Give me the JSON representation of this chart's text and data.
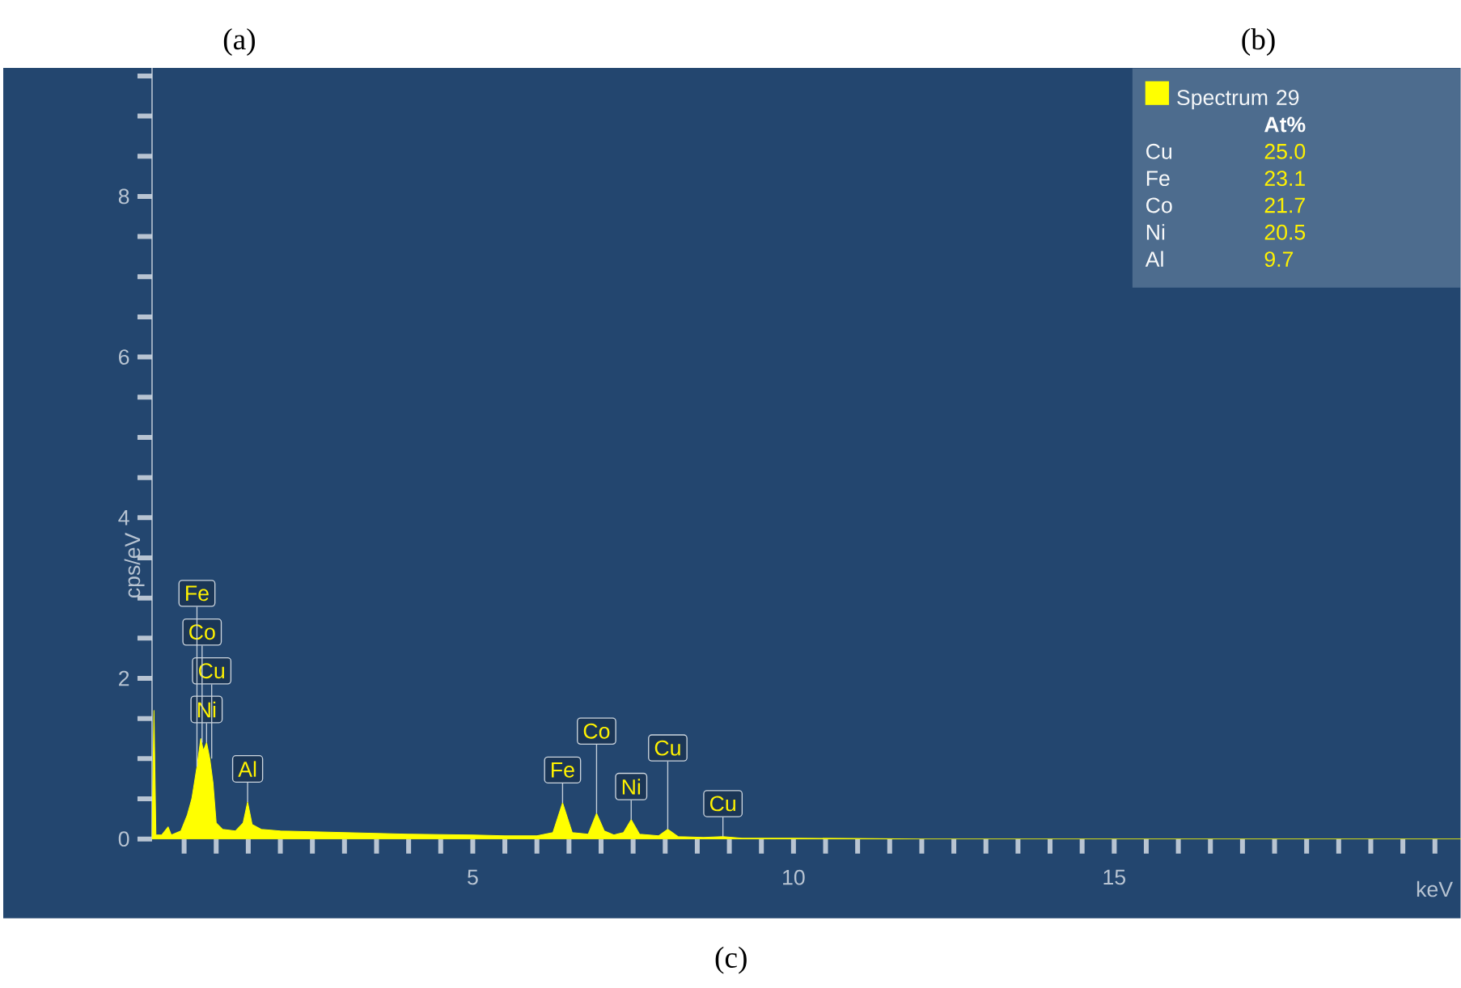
{
  "chart_data": {
    "type": "area",
    "xlabel": "keV",
    "ylabel": "cps/eV",
    "xlim": [
      0,
      20.4
    ],
    "ylim": [
      0,
      9.6
    ],
    "xticks": [
      {
        "value": 0.5,
        "label": null
      },
      {
        "value": 1,
        "label": null
      },
      {
        "value": 1.5,
        "label": null
      },
      {
        "value": 2,
        "label": null
      },
      {
        "value": 2.5,
        "label": null
      },
      {
        "value": 3,
        "label": null
      },
      {
        "value": 3.5,
        "label": null
      },
      {
        "value": 4,
        "label": null
      },
      {
        "value": 4.5,
        "label": null
      },
      5,
      {
        "value": 5.5,
        "label": null
      },
      {
        "value": 6,
        "label": null
      },
      {
        "value": 6.5,
        "label": null
      },
      {
        "value": 7,
        "label": null
      },
      {
        "value": 7.5,
        "label": null
      },
      {
        "value": 8,
        "label": null
      },
      {
        "value": 8.5,
        "label": null
      },
      {
        "value": 9,
        "label": null
      },
      {
        "value": 9.5,
        "label": null
      },
      10,
      {
        "value": 10.5,
        "label": null
      },
      {
        "value": 11,
        "label": null
      },
      {
        "value": 11.5,
        "label": null
      },
      {
        "value": 12,
        "label": null
      },
      {
        "value": 12.5,
        "label": null
      },
      {
        "value": 13,
        "label": null
      },
      {
        "value": 13.5,
        "label": null
      },
      {
        "value": 14,
        "label": null
      },
      {
        "value": 14.5,
        "label": null
      },
      15,
      {
        "value": 15.5,
        "label": null
      },
      {
        "value": 16,
        "label": null
      },
      {
        "value": 16.5,
        "label": null
      },
      {
        "value": 17,
        "label": null
      },
      {
        "value": 17.5,
        "label": null
      },
      {
        "value": 18,
        "label": null
      },
      {
        "value": 18.5,
        "label": null
      },
      {
        "value": 19,
        "label": null
      },
      {
        "value": 19.5,
        "label": null
      },
      {
        "value": 20,
        "label": null
      }
    ],
    "yticks": [
      0,
      {
        "value": 0.5,
        "label": null
      },
      {
        "value": 1,
        "label": null
      },
      {
        "value": 1.5,
        "label": null
      },
      2,
      {
        "value": 2.5,
        "label": null
      },
      {
        "value": 3,
        "label": null
      },
      {
        "value": 3.5,
        "label": null
      },
      4,
      {
        "value": 4.5,
        "label": null
      },
      {
        "value": 5,
        "label": null
      },
      {
        "value": 5.5,
        "label": null
      },
      6,
      {
        "value": 6.5,
        "label": null
      },
      {
        "value": 7,
        "label": null
      },
      {
        "value": 7.5,
        "label": null
      },
      8,
      {
        "value": 8.5,
        "label": null
      },
      {
        "value": 9,
        "label": null
      },
      {
        "value": 9.5,
        "label": null
      }
    ],
    "legend": "top right",
    "series": [
      {
        "name": "Spectrum 29",
        "color": "#ffff00",
        "x": [
          0,
          0.03,
          0.06,
          0.15,
          0.25,
          0.3,
          0.45,
          0.55,
          0.62,
          0.7,
          0.76,
          0.8,
          0.85,
          0.9,
          0.95,
          1.0,
          1.1,
          1.3,
          1.42,
          1.49,
          1.56,
          1.7,
          2.0,
          2.5,
          3.0,
          3.5,
          4.0,
          5.0,
          5.5,
          6.0,
          6.25,
          6.4,
          6.55,
          6.8,
          6.93,
          7.05,
          7.2,
          7.35,
          7.47,
          7.6,
          7.9,
          8.04,
          8.2,
          8.6,
          8.9,
          9.2,
          10,
          12,
          15,
          20.4
        ],
        "values": [
          0,
          1.6,
          0.05,
          0.05,
          0.15,
          0.05,
          0.1,
          0.3,
          0.5,
          0.9,
          1.25,
          1.1,
          1.2,
          1.0,
          0.7,
          0.2,
          0.12,
          0.1,
          0.2,
          0.46,
          0.18,
          0.12,
          0.1,
          0.09,
          0.08,
          0.07,
          0.06,
          0.05,
          0.04,
          0.04,
          0.08,
          0.45,
          0.08,
          0.06,
          0.32,
          0.1,
          0.05,
          0.08,
          0.24,
          0.06,
          0.04,
          0.12,
          0.03,
          0.02,
          0.03,
          0.01,
          0.01,
          0,
          0,
          0
        ]
      }
    ],
    "annotations": [
      "(a)",
      "(b)",
      "(c)",
      "At%",
      "Cu",
      "25.0",
      "Fe",
      "23.1",
      "Co",
      "21.7",
      "Ni",
      "20.5",
      "Al",
      "9.7",
      {
        "text": "Al",
        "x": 1.49,
        "y": 0.46
      },
      {
        "text": "Ni",
        "x": 0.85,
        "y": 1.2
      },
      {
        "text": "Cu",
        "x": 0.93,
        "y": 1.0
      },
      {
        "text": "Co",
        "x": 0.78,
        "y": 1.2
      },
      {
        "text": "Fe",
        "x": 0.7,
        "y": 0.9
      },
      {
        "text": "Fe",
        "x": 6.4,
        "y": 0.45
      },
      {
        "text": "Ni",
        "x": 7.47,
        "y": 0.24
      },
      {
        "text": "Co",
        "x": 6.93,
        "y": 0.32
      },
      {
        "text": "Cu",
        "x": 8.04,
        "y": 0.12
      },
      {
        "text": "Cu",
        "x": 8.9,
        "y": 0.03
      }
    ]
  }
}
